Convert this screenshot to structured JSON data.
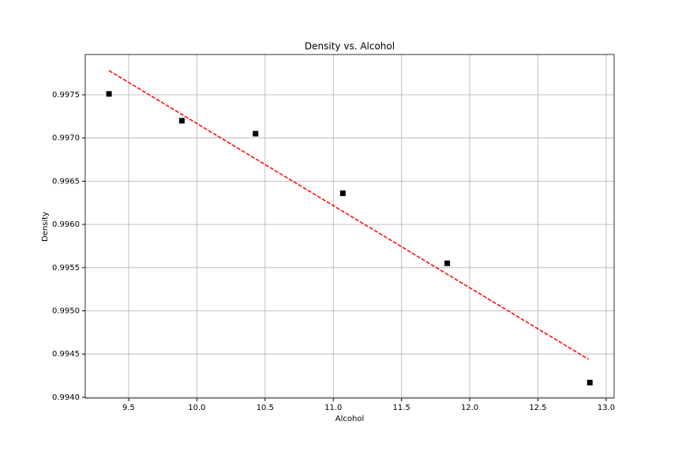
{
  "chart_data": {
    "type": "scatter",
    "title": "Density vs. Alcohol",
    "xlabel": "Alcohol",
    "ylabel": "Density",
    "x": [
      9.356,
      9.89,
      10.43,
      11.07,
      11.835,
      12.88
    ],
    "values": [
      0.99751,
      0.9972,
      0.99705,
      0.99636,
      0.99555,
      0.99417
    ],
    "color": "#000000",
    "marker": "square",
    "fit": {
      "x": [
        9.356,
        12.87
      ],
      "values": [
        0.99778,
        0.99444
      ],
      "color": "#ff0000",
      "style": "dashed"
    },
    "xlim": [
      9.182,
      13.058
    ],
    "ylim": [
      0.99399,
      0.997966
    ],
    "xticks": [
      9.5,
      {
        "value": 10.0,
        "label": "10.0"
      },
      10.5,
      {
        "value": 11.0,
        "label": "11.0"
      },
      11.5,
      {
        "value": 12.0,
        "label": "12.0"
      },
      12.5,
      {
        "value": 13.0,
        "label": "13.0"
      }
    ],
    "yticks": [
      {
        "value": 0.994,
        "label": "0.9940"
      },
      0.9945,
      {
        "value": 0.995,
        "label": "0.9950"
      },
      0.9955,
      {
        "value": 0.996,
        "label": "0.9960"
      },
      0.9965,
      {
        "value": 0.997,
        "label": "0.9970"
      },
      0.9975
    ],
    "grid": true
  }
}
